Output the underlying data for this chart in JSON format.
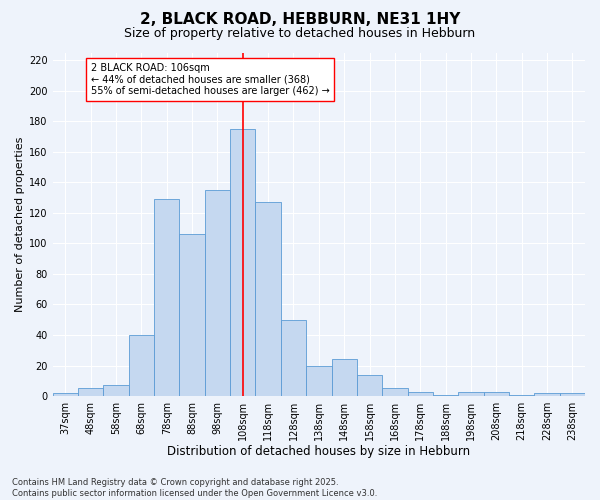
{
  "title": "2, BLACK ROAD, HEBBURN, NE31 1HY",
  "subtitle": "Size of property relative to detached houses in Hebburn",
  "xlabel": "Distribution of detached houses by size in Hebburn",
  "ylabel": "Number of detached properties",
  "categories": [
    "37sqm",
    "48sqm",
    "58sqm",
    "68sqm",
    "78sqm",
    "88sqm",
    "98sqm",
    "108sqm",
    "118sqm",
    "128sqm",
    "138sqm",
    "148sqm",
    "158sqm",
    "168sqm",
    "178sqm",
    "188sqm",
    "198sqm",
    "208sqm",
    "218sqm",
    "228sqm",
    "238sqm"
  ],
  "values": [
    2,
    5,
    7,
    40,
    129,
    106,
    135,
    175,
    127,
    50,
    20,
    24,
    14,
    5,
    3,
    1,
    3,
    3,
    1,
    2,
    2
  ],
  "bar_color": "#c5d8f0",
  "bar_edge_color": "#5b9bd5",
  "vline_index": 7,
  "vline_color": "red",
  "annotation_text": "2 BLACK ROAD: 106sqm\n← 44% of detached houses are smaller (368)\n55% of semi-detached houses are larger (462) →",
  "annotation_box_color": "white",
  "annotation_box_edge": "red",
  "ylim": [
    0,
    225
  ],
  "yticks": [
    0,
    20,
    40,
    60,
    80,
    100,
    120,
    140,
    160,
    180,
    200,
    220
  ],
  "background_color": "#eef3fb",
  "grid_color": "white",
  "footer_text": "Contains HM Land Registry data © Crown copyright and database right 2025.\nContains public sector information licensed under the Open Government Licence v3.0.",
  "title_fontsize": 11,
  "subtitle_fontsize": 9,
  "xlabel_fontsize": 8.5,
  "ylabel_fontsize": 8,
  "tick_fontsize": 7,
  "annotation_fontsize": 7,
  "footer_fontsize": 6
}
